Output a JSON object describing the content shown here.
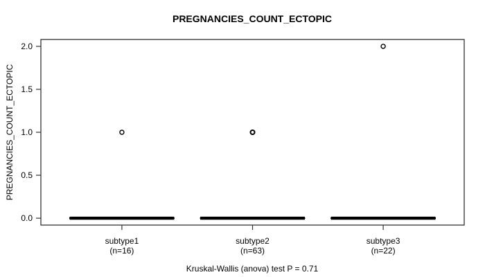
{
  "chart_data": {
    "type": "boxplot",
    "title": "PREGNANCIES_COUNT_ECTOPIC",
    "ylabel": "PREGNANCIES_COUNT_ECTOPIC",
    "xlabel": "",
    "footer": "Kruskal-Wallis (anova) test P = 0.71",
    "ylim": [
      0,
      2
    ],
    "ytick_values": [
      0,
      0.5,
      1,
      1.5,
      2
    ],
    "ytick_labels": [
      "0.0",
      "0.5",
      "1.0",
      "1.5",
      "2.0"
    ],
    "grid": false,
    "legend": "none",
    "groups": [
      {
        "label": "subtype1",
        "n_label": "(n=16)",
        "n": 16,
        "median": 0,
        "q1": 0,
        "q3": 0,
        "whisker_low": 0,
        "whisker_high": 0,
        "outliers": [
          1
        ]
      },
      {
        "label": "subtype2",
        "n_label": "(n=63)",
        "n": 63,
        "median": 0,
        "q1": 0,
        "q3": 0,
        "whisker_low": 0,
        "whisker_high": 0,
        "outliers": [
          1,
          1
        ]
      },
      {
        "label": "subtype3",
        "n_label": "(n=22)",
        "n": 22,
        "median": 0,
        "q1": 0,
        "q3": 0,
        "whisker_low": 0,
        "whisker_high": 0,
        "outliers": [
          2
        ]
      }
    ],
    "colors": {
      "box": "#000000",
      "axis": "#333333",
      "text": "#000000",
      "background": "#ffffff"
    }
  }
}
